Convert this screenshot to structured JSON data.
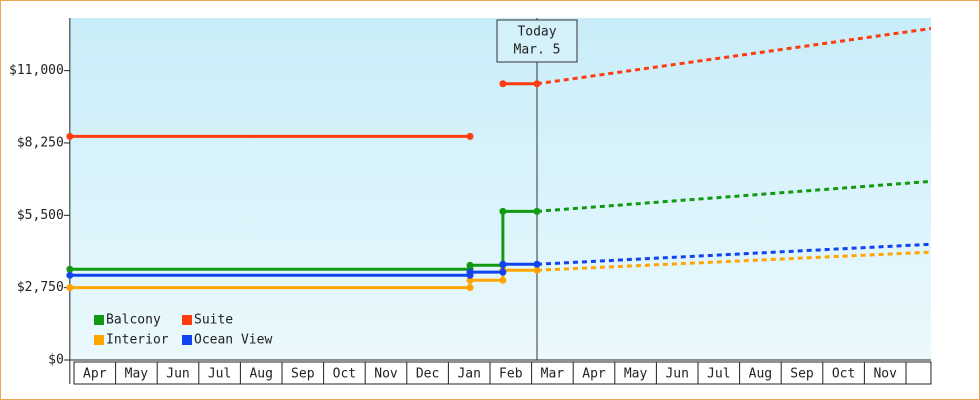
{
  "chart_data": {
    "type": "line",
    "categories": [
      "Apr",
      "May",
      "Jun",
      "Jul",
      "Aug",
      "Sep",
      "Oct",
      "Nov",
      "Dec",
      "Jan",
      "Feb",
      "Mar",
      "Apr",
      "May",
      "Jun",
      "Jul",
      "Aug",
      "Sep",
      "Oct",
      "Nov"
    ],
    "xlim": [
      -0.1,
      20.6
    ],
    "ylim": [
      0,
      13000
    ],
    "yticks": [
      {
        "value": 0,
        "label": "$0"
      },
      {
        "value": 2750,
        "label": "$2,750"
      },
      {
        "value": 5500,
        "label": "$5,500"
      },
      {
        "value": 8250,
        "label": "$8,250"
      },
      {
        "value": 11000,
        "label": "$11,000"
      }
    ],
    "legend": "lower left",
    "annotation": {
      "x": 11.13,
      "lines": [
        "Today",
        "Mar. 5"
      ]
    },
    "series": [
      {
        "name": "Balcony",
        "color": "#119911",
        "x": [
          -0.1,
          9.52,
          9.52,
          10.31,
          10.31,
          11.13
        ],
        "values": [
          3450,
          3450,
          3600,
          3600,
          5650,
          5650
        ],
        "forecast": {
          "x": [
            11.13,
            20.6
          ],
          "values": [
            5650,
            6790
          ]
        }
      },
      {
        "name": "Suite",
        "color": "#ff3b10",
        "x": [
          -0.1,
          9.52,
          null,
          10.31,
          11.13
        ],
        "values": [
          8500,
          8500,
          null,
          10500,
          10500
        ],
        "forecast": {
          "x": [
            11.13,
            20.6
          ],
          "values": [
            10500,
            12600
          ]
        }
      },
      {
        "name": "Interior",
        "color": "#ffa500",
        "x": [
          -0.1,
          9.52,
          9.52,
          10.31,
          10.31,
          11.13
        ],
        "values": [
          2750,
          2750,
          3030,
          3030,
          3410,
          3410
        ],
        "forecast": {
          "x": [
            11.13,
            20.6
          ],
          "values": [
            3410,
            4100
          ]
        }
      },
      {
        "name": "Ocean View",
        "color": "#1144ee",
        "x": [
          -0.1,
          9.52,
          9.52,
          10.31,
          10.31,
          11.13
        ],
        "values": [
          3220,
          3220,
          3340,
          3340,
          3640,
          3640
        ],
        "forecast": {
          "x": [
            11.13,
            20.6
          ],
          "values": [
            3640,
            4400
          ]
        }
      }
    ]
  }
}
